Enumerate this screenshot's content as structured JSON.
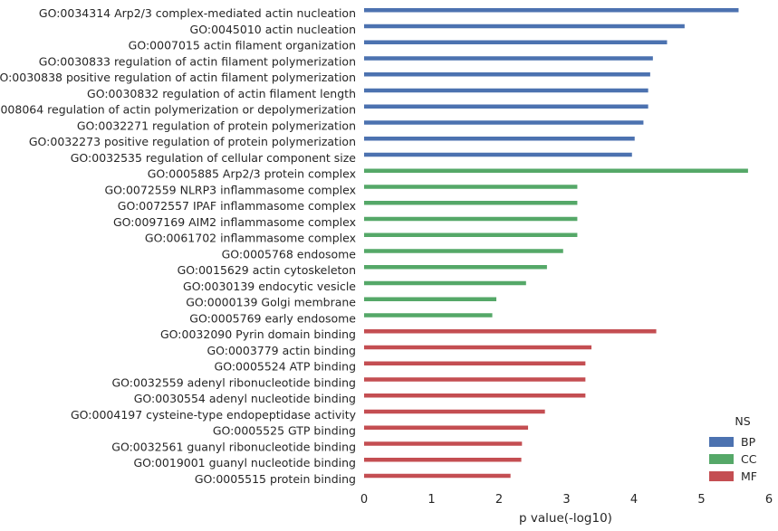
{
  "chart_data": {
    "type": "bar",
    "orientation": "horizontal",
    "xlabel": "p value(-log10)",
    "ylabel": "",
    "xlim": [
      0,
      6
    ],
    "xticks": [
      "0",
      "1",
      "2",
      "3",
      "4",
      "5",
      "6"
    ],
    "grid": false,
    "legend": {
      "title": "NS",
      "placement": "bottom-right",
      "entries": [
        "BP",
        "CC",
        "MF"
      ]
    },
    "colors": {
      "BP": "#4c72b0",
      "CC": "#55a868",
      "MF": "#c44e52"
    },
    "bars": [
      {
        "label": "GO:0034314 Arp2/3 complex-mediated actin nucleation",
        "value": 5.55,
        "group": "BP"
      },
      {
        "label": "GO:0045010 actin nucleation",
        "value": 4.75,
        "group": "BP"
      },
      {
        "label": "GO:0007015 actin filament organization",
        "value": 4.49,
        "group": "BP"
      },
      {
        "label": "GO:0030833 regulation of actin filament polymerization",
        "value": 4.28,
        "group": "BP"
      },
      {
        "label": "GO:0030838 positive regulation of actin filament polymerization",
        "value": 4.24,
        "group": "BP"
      },
      {
        "label": "GO:0030832 regulation of actin filament length",
        "value": 4.21,
        "group": "BP"
      },
      {
        "label": "GO:0008064 regulation of actin polymerization or depolymerization",
        "value": 4.21,
        "group": "BP"
      },
      {
        "label": "GO:0032271 regulation of protein polymerization",
        "value": 4.14,
        "group": "BP"
      },
      {
        "label": "GO:0032273 positive regulation of protein polymerization",
        "value": 4.01,
        "group": "BP"
      },
      {
        "label": "GO:0032535 regulation of cellular component size",
        "value": 3.97,
        "group": "BP"
      },
      {
        "label": "GO:0005885 Arp2/3 protein complex",
        "value": 5.69,
        "group": "CC"
      },
      {
        "label": "GO:0072559 NLRP3 inflammasome complex",
        "value": 3.16,
        "group": "CC"
      },
      {
        "label": "GO:0072557 IPAF inflammasome complex",
        "value": 3.16,
        "group": "CC"
      },
      {
        "label": "GO:0097169 AIM2 inflammasome complex",
        "value": 3.16,
        "group": "CC"
      },
      {
        "label": "GO:0061702 inflammasome complex",
        "value": 3.16,
        "group": "CC"
      },
      {
        "label": "GO:0005768 endosome",
        "value": 2.95,
        "group": "CC"
      },
      {
        "label": "GO:0015629 actin cytoskeleton",
        "value": 2.71,
        "group": "CC"
      },
      {
        "label": "GO:0030139 endocytic vesicle",
        "value": 2.4,
        "group": "CC"
      },
      {
        "label": "GO:0000139 Golgi membrane",
        "value": 1.96,
        "group": "CC"
      },
      {
        "label": "GO:0005769 early endosome",
        "value": 1.9,
        "group": "CC"
      },
      {
        "label": "GO:0032090 Pyrin domain binding",
        "value": 4.33,
        "group": "MF"
      },
      {
        "label": "GO:0003779 actin binding",
        "value": 3.37,
        "group": "MF"
      },
      {
        "label": "GO:0005524 ATP binding",
        "value": 3.28,
        "group": "MF"
      },
      {
        "label": "GO:0032559 adenyl ribonucleotide binding",
        "value": 3.28,
        "group": "MF"
      },
      {
        "label": "GO:0030554 adenyl nucleotide binding",
        "value": 3.28,
        "group": "MF"
      },
      {
        "label": "GO:0004197 cysteine-type endopeptidase activity",
        "value": 2.68,
        "group": "MF"
      },
      {
        "label": "GO:0005525 GTP binding",
        "value": 2.43,
        "group": "MF"
      },
      {
        "label": "GO:0032561 guanyl ribonucleotide binding",
        "value": 2.34,
        "group": "MF"
      },
      {
        "label": "GO:0019001 guanyl nucleotide binding",
        "value": 2.33,
        "group": "MF"
      },
      {
        "label": "GO:0005515 protein binding",
        "value": 2.17,
        "group": "MF"
      }
    ]
  }
}
